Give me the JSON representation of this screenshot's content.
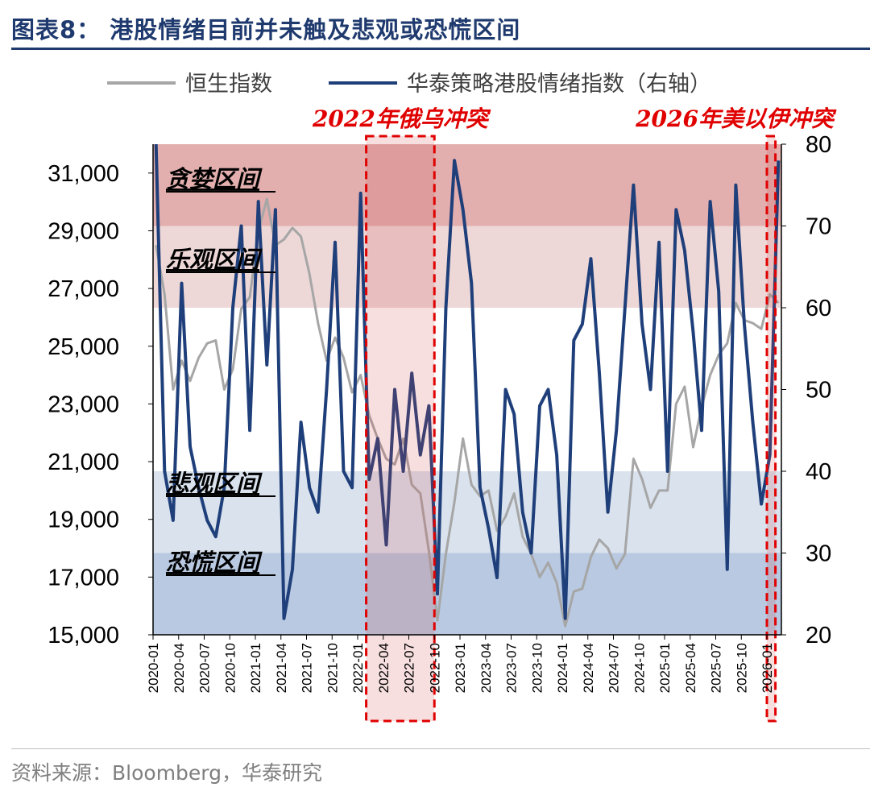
{
  "title": "图表8：   港股情绪目前并未触及悲观或恐慌区间",
  "source": "资料来源：Bloomberg，华泰研究",
  "chart_data": {
    "type": "line",
    "title": "港股情绪目前并未触及悲观或恐慌区间",
    "x_ticks": [
      "2020-01",
      "2020-04",
      "2020-07",
      "2020-10",
      "2021-01",
      "2021-04",
      "2021-07",
      "2021-10",
      "2022-01",
      "2022-04",
      "2022-07",
      "2022-10",
      "2023-01",
      "2023-04",
      "2023-07",
      "2023-10",
      "2024-01",
      "2024-04",
      "2024-07",
      "2024-10",
      "2025-01",
      "2025-04",
      "2025-07",
      "2025-10",
      "2026-01"
    ],
    "y_left": {
      "min": 15000,
      "max": 32000,
      "ticks": [
        "15,000",
        "17,000",
        "19,000",
        "21,000",
        "23,000",
        "25,000",
        "27,000",
        "29,000",
        "31,000"
      ]
    },
    "y_right": {
      "min": 20,
      "max": 80,
      "ticks": [
        "20",
        "30",
        "40",
        "50",
        "60",
        "70",
        "80"
      ]
    },
    "zones": [
      {
        "label": "贪婪区间",
        "from": 70,
        "to": 80,
        "color": "#e2aeae"
      },
      {
        "label": "乐观区间",
        "from": 60,
        "to": 70,
        "color": "#eed7d7"
      },
      {
        "label": "",
        "from": 40,
        "to": 60,
        "color": "#ffffff"
      },
      {
        "label": "悲观区间",
        "from": 30,
        "to": 40,
        "color": "#d9e2ed"
      },
      {
        "label": "恐慌区间",
        "from": 20,
        "to": 30,
        "color": "#b8c9e1"
      }
    ],
    "events": [
      {
        "label": "2022年俄乌冲突",
        "from": "2022-02",
        "to": "2022-10",
        "color": "#e00000"
      },
      {
        "label": "2026年美以伊冲突",
        "from": "2026-01",
        "to": "2026-02",
        "color": "#e00000"
      }
    ],
    "series": [
      {
        "name": "恒生指数",
        "axis": "left",
        "color": "#a6a6a6",
        "x": [
          "2020-01",
          "2020-02",
          "2020-03",
          "2020-04",
          "2020-05",
          "2020-06",
          "2020-07",
          "2020-08",
          "2020-09",
          "2020-10",
          "2020-11",
          "2020-12",
          "2021-01",
          "2021-02",
          "2021-03",
          "2021-04",
          "2021-05",
          "2021-06",
          "2021-07",
          "2021-08",
          "2021-09",
          "2021-10",
          "2021-11",
          "2021-12",
          "2022-01",
          "2022-02",
          "2022-03",
          "2022-04",
          "2022-05",
          "2022-06",
          "2022-07",
          "2022-08",
          "2022-09",
          "2022-10",
          "2022-11",
          "2022-12",
          "2023-01",
          "2023-02",
          "2023-03",
          "2023-04",
          "2023-05",
          "2023-06",
          "2023-07",
          "2023-08",
          "2023-09",
          "2023-10",
          "2023-11",
          "2023-12",
          "2024-01",
          "2024-02",
          "2024-03",
          "2024-04",
          "2024-05",
          "2024-06",
          "2024-07",
          "2024-08",
          "2024-09",
          "2024-10",
          "2024-11",
          "2024-12",
          "2025-01",
          "2025-02",
          "2025-03",
          "2025-04",
          "2025-05",
          "2025-06",
          "2025-07",
          "2025-08",
          "2025-09",
          "2025-10",
          "2025-11",
          "2025-12",
          "2026-01",
          "2026-02"
        ],
        "values": [
          28500,
          26800,
          23500,
          24500,
          23800,
          24600,
          25100,
          25200,
          23500,
          24200,
          26300,
          26700,
          29000,
          30100,
          28500,
          28700,
          29100,
          28800,
          27500,
          25800,
          24500,
          25300,
          24600,
          23400,
          24000,
          22600,
          21800,
          21100,
          20900,
          21800,
          20200,
          19900,
          17900,
          15500,
          17800,
          19600,
          21800,
          20200,
          19800,
          20000,
          18600,
          19100,
          19900,
          18400,
          17800,
          17000,
          17500,
          16800,
          15300,
          16500,
          16600,
          17700,
          18300,
          18000,
          17300,
          17800,
          21100,
          20400,
          19400,
          20000,
          20000,
          23000,
          23600,
          21500,
          22900,
          24000,
          24700,
          25100,
          26500,
          25900,
          25800,
          25600,
          26800,
          26500
        ]
      },
      {
        "name": "华泰策略港股情绪指数（右轴）",
        "axis": "right",
        "color": "#1f3f7a",
        "x": [
          "2020-01",
          "2020-02",
          "2020-03",
          "2020-04",
          "2020-05",
          "2020-06",
          "2020-07",
          "2020-08",
          "2020-09",
          "2020-10",
          "2020-11",
          "2020-12",
          "2021-01",
          "2021-02",
          "2021-03",
          "2021-04",
          "2021-05",
          "2021-06",
          "2021-07",
          "2021-08",
          "2021-09",
          "2021-10",
          "2021-11",
          "2021-12",
          "2022-01",
          "2022-02",
          "2022-03",
          "2022-04",
          "2022-05",
          "2022-06",
          "2022-07",
          "2022-08",
          "2022-09",
          "2022-10",
          "2022-11",
          "2022-12",
          "2023-01",
          "2023-02",
          "2023-03",
          "2023-04",
          "2023-05",
          "2023-06",
          "2023-07",
          "2023-08",
          "2023-09",
          "2023-10",
          "2023-11",
          "2023-12",
          "2024-01",
          "2024-02",
          "2024-03",
          "2024-04",
          "2024-05",
          "2024-06",
          "2024-07",
          "2024-08",
          "2024-09",
          "2024-10",
          "2024-11",
          "2024-12",
          "2025-01",
          "2025-02",
          "2025-03",
          "2025-04",
          "2025-05",
          "2025-06",
          "2025-07",
          "2025-08",
          "2025-09",
          "2025-10",
          "2025-11",
          "2025-12",
          "2026-01",
          "2026-02"
        ],
        "values": [
          80,
          40,
          34,
          63,
          43,
          38,
          34,
          32,
          38,
          60,
          70,
          45,
          73,
          53,
          72,
          22,
          28,
          46,
          38,
          35,
          50,
          68,
          40,
          38,
          74,
          39,
          44,
          31,
          50,
          40,
          52,
          42,
          48,
          25,
          60,
          78,
          72,
          63,
          38,
          33,
          27,
          50,
          47,
          35,
          30,
          48,
          50,
          42,
          22,
          56,
          58,
          66,
          52,
          35,
          45,
          60,
          75,
          58,
          50,
          68,
          40,
          72,
          67,
          57,
          45,
          73,
          62,
          28,
          75,
          58,
          46,
          36,
          42,
          78
        ]
      }
    ]
  }
}
